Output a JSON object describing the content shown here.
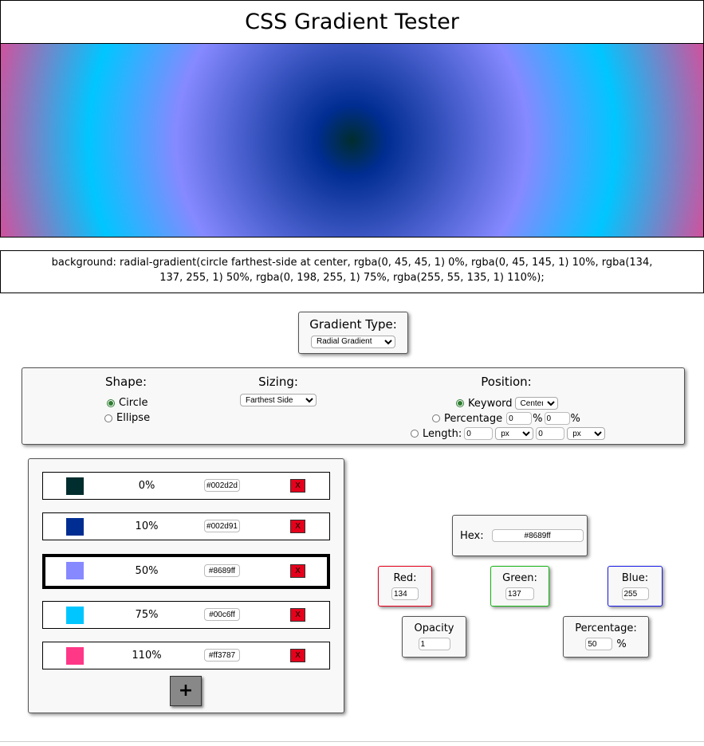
{
  "title": "CSS Gradient Tester",
  "css_output": "background: radial-gradient(circle farthest-side at center, rgba(0, 45, 45, 1) 0%, rgba(0, 45, 145, 1) 10%, rgba(134, 137, 255, 1) 50%, rgba(0, 198, 255, 1) 75%, rgba(255, 55, 135, 1) 110%);",
  "gradient_type": {
    "label": "Gradient Type:",
    "value": "Radial Gradient"
  },
  "shape": {
    "label": "Shape:",
    "circle": "Circle",
    "ellipse": "Ellipse",
    "selected": "circle"
  },
  "sizing": {
    "label": "Sizing:",
    "value": "Farthest Side"
  },
  "position": {
    "label": "Position:",
    "keyword_label": "Keyword",
    "keyword_value": "Center",
    "percentage_label": "Percentage",
    "pct_x": "0",
    "pct_y": "0",
    "pct_unit": "%",
    "length_label": "Length:",
    "len_x": "0",
    "len_x_unit": "px",
    "len_y": "0",
    "len_y_unit": "px"
  },
  "stops": [
    {
      "color": "#002d2d",
      "percent": "0%",
      "hex": "#002d2d",
      "remove": "X"
    },
    {
      "color": "#002d91",
      "percent": "10%",
      "hex": "#002d91",
      "remove": "X"
    },
    {
      "color": "#8689ff",
      "percent": "50%",
      "hex": "#8689ff",
      "remove": "X"
    },
    {
      "color": "#00c6ff",
      "percent": "75%",
      "hex": "#00c6ff",
      "remove": "X"
    },
    {
      "color": "#ff3787",
      "percent": "110%",
      "hex": "#ff3787",
      "remove": "X"
    }
  ],
  "add_label": "+",
  "editor": {
    "hex_label": "Hex:",
    "hex_value": "#8689ff",
    "red_label": "Red:",
    "red_value": "134",
    "green_label": "Green:",
    "green_value": "137",
    "blue_label": "Blue:",
    "blue_value": "255",
    "opacity_label": "Opacity",
    "opacity_value": "1",
    "percentage_label": "Percentage:",
    "percentage_value": "50",
    "percentage_unit": "%"
  }
}
